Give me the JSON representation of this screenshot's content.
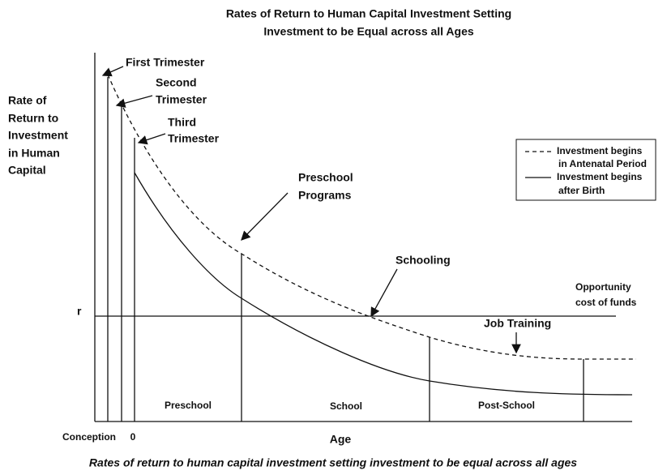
{
  "title": [
    "Rates of Return to Human Capital Investment Setting",
    "Investment to be Equal across all Ages"
  ],
  "y_axis_label": [
    "Rate of",
    "Return to",
    "Investment",
    "in Human",
    "Capital"
  ],
  "r_label": "r",
  "annotations": {
    "first_trimester": [
      "First Trimester"
    ],
    "second_trimester": [
      "Second",
      "Trimester"
    ],
    "third_trimester": [
      "Third",
      "Trimester"
    ],
    "preschool_programs": [
      "Preschool",
      "Programs"
    ],
    "schooling": [
      "Schooling"
    ],
    "opportunity_cost": [
      "Opportunity",
      "cost of funds"
    ],
    "job_training": [
      "Job Training"
    ]
  },
  "legend": [
    {
      "style": "dashed",
      "label": [
        "Investment begins",
        "in Antenatal Period"
      ]
    },
    {
      "style": "solid",
      "label": [
        "Investment begins",
        "after Birth"
      ]
    }
  ],
  "periods": [
    "Preschool",
    "School",
    "Post-School"
  ],
  "x_axis": {
    "conception": "Conception",
    "zero": "0",
    "label": "Age"
  },
  "caption": "Rates of return to human capital investment setting investment to be equal across all ages"
}
